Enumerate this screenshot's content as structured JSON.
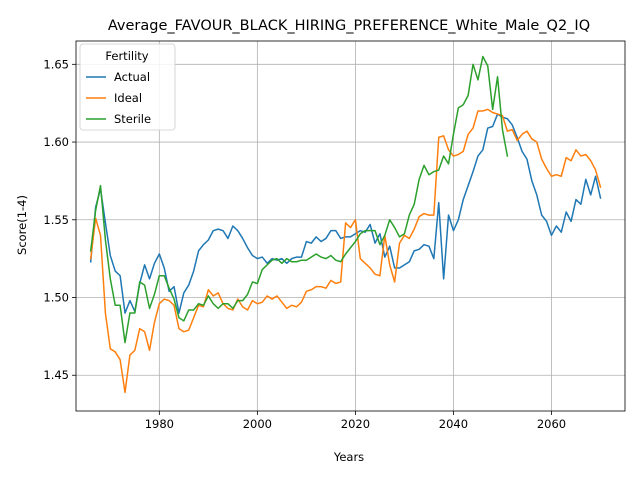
{
  "chart_data": {
    "type": "line",
    "title": "Average_FAVOUR_BLACK_HIRING_PREFERENCE_White_Male_Q2_IQ",
    "xlabel": "Years",
    "ylabel": "Score(1-4)",
    "xlim": [
      1963,
      2075
    ],
    "ylim": [
      1.427,
      1.665
    ],
    "xticks": [
      1980,
      2000,
      2020,
      2040,
      2060
    ],
    "yticks": [
      1.45,
      1.5,
      1.55,
      1.6,
      1.65
    ],
    "xtick_labels": [
      "1980",
      "2000",
      "2020",
      "2040",
      "2060"
    ],
    "ytick_labels": [
      "1.45",
      "1.50",
      "1.55",
      "1.60",
      "1.65"
    ],
    "grid": true,
    "legend": {
      "title": "Fertility",
      "placement": "top-left"
    },
    "series": [
      {
        "name": "Actual",
        "color": "#1f77b4",
        "x": [
          1966,
          1967,
          1968,
          1969,
          1970,
          1971,
          1972,
          1973,
          1974,
          1975,
          1976,
          1977,
          1978,
          1979,
          1980,
          1981,
          1982,
          1983,
          1984,
          1985,
          1986,
          1987,
          1988,
          1989,
          1990,
          1991,
          1992,
          1993,
          1994,
          1995,
          1996,
          1997,
          1998,
          1999,
          2000,
          2001,
          2002,
          2003,
          2004,
          2005,
          2006,
          2007,
          2008,
          2009,
          2010,
          2011,
          2012,
          2013,
          2014,
          2015,
          2016,
          2017,
          2018,
          2019,
          2020,
          2021,
          2022,
          2023,
          2024,
          2025,
          2026,
          2027,
          2028,
          2029,
          2030,
          2031,
          2032,
          2033,
          2034,
          2035,
          2036,
          2037,
          2038,
          2039,
          2040,
          2041,
          2042,
          2043,
          2044,
          2045,
          2046,
          2047,
          2048,
          2049,
          2050,
          2051,
          2052,
          2053,
          2054,
          2055,
          2056,
          2057,
          2058,
          2059,
          2060,
          2061,
          2062,
          2063,
          2064,
          2065,
          2066,
          2067,
          2068,
          2069,
          2070
        ],
        "y": [
          1.523,
          1.558,
          1.57,
          1.548,
          1.527,
          1.517,
          1.514,
          1.49,
          1.498,
          1.491,
          1.509,
          1.521,
          1.512,
          1.522,
          1.528,
          1.519,
          1.504,
          1.507,
          1.49,
          1.503,
          1.508,
          1.517,
          1.53,
          1.534,
          1.537,
          1.543,
          1.544,
          1.543,
          1.538,
          1.546,
          1.543,
          1.538,
          1.532,
          1.527,
          1.525,
          1.526,
          1.522,
          1.525,
          1.524,
          1.525,
          1.522,
          1.525,
          1.526,
          1.526,
          1.536,
          1.535,
          1.539,
          1.536,
          1.538,
          1.543,
          1.543,
          1.538,
          1.539,
          1.539,
          1.541,
          1.543,
          1.542,
          1.547,
          1.535,
          1.541,
          1.526,
          1.533,
          1.519,
          1.519,
          1.521,
          1.523,
          1.53,
          1.531,
          1.534,
          1.533,
          1.525,
          1.561,
          1.512,
          1.553,
          1.543,
          1.55,
          1.563,
          1.572,
          1.581,
          1.591,
          1.595,
          1.609,
          1.61,
          1.618,
          1.616,
          1.615,
          1.611,
          1.603,
          1.594,
          1.589,
          1.575,
          1.566,
          1.553,
          1.549,
          1.54,
          1.546,
          1.542,
          1.555,
          1.549,
          1.563,
          1.56,
          1.576,
          1.566,
          1.578,
          1.564
        ]
      },
      {
        "name": "Ideal",
        "color": "#ff7f0e",
        "x": [
          1966,
          1967,
          1968,
          1969,
          1970,
          1971,
          1972,
          1973,
          1974,
          1975,
          1976,
          1977,
          1978,
          1979,
          1980,
          1981,
          1982,
          1983,
          1984,
          1985,
          1986,
          1987,
          1988,
          1989,
          1990,
          1991,
          1992,
          1993,
          1994,
          1995,
          1996,
          1997,
          1998,
          1999,
          2000,
          2001,
          2002,
          2003,
          2004,
          2005,
          2006,
          2007,
          2008,
          2009,
          2010,
          2011,
          2012,
          2013,
          2014,
          2015,
          2016,
          2017,
          2018,
          2019,
          2020,
          2021,
          2022,
          2023,
          2024,
          2025,
          2026,
          2027,
          2028,
          2029,
          2030,
          2031,
          2032,
          2033,
          2034,
          2035,
          2036,
          2037,
          2038,
          2039,
          2040,
          2041,
          2042,
          2043,
          2044,
          2045,
          2046,
          2047,
          2048,
          2049,
          2050,
          2051,
          2052,
          2053,
          2054,
          2055,
          2056,
          2057,
          2058,
          2059,
          2060,
          2061,
          2062,
          2063,
          2064,
          2065,
          2066,
          2067,
          2068,
          2069,
          2070
        ],
        "y": [
          1.525,
          1.551,
          1.54,
          1.49,
          1.467,
          1.465,
          1.46,
          1.439,
          1.463,
          1.466,
          1.48,
          1.478,
          1.466,
          1.484,
          1.496,
          1.499,
          1.498,
          1.495,
          1.48,
          1.478,
          1.479,
          1.487,
          1.495,
          1.494,
          1.505,
          1.501,
          1.503,
          1.496,
          1.493,
          1.492,
          1.499,
          1.494,
          1.492,
          1.498,
          1.496,
          1.497,
          1.501,
          1.499,
          1.501,
          1.497,
          1.493,
          1.495,
          1.494,
          1.497,
          1.504,
          1.505,
          1.507,
          1.507,
          1.506,
          1.511,
          1.509,
          1.51,
          1.548,
          1.545,
          1.55,
          1.525,
          1.522,
          1.519,
          1.515,
          1.514,
          1.54,
          1.521,
          1.51,
          1.535,
          1.54,
          1.538,
          1.544,
          1.552,
          1.554,
          1.553,
          1.553,
          1.603,
          1.604,
          1.595,
          1.591,
          1.592,
          1.594,
          1.605,
          1.609,
          1.62,
          1.62,
          1.621,
          1.619,
          1.618,
          1.617,
          1.607,
          1.608,
          1.601,
          1.605,
          1.607,
          1.602,
          1.6,
          1.589,
          1.583,
          1.578,
          1.579,
          1.578,
          1.59,
          1.588,
          1.595,
          1.591,
          1.592,
          1.588,
          1.582,
          1.571
        ]
      },
      {
        "name": "Sterile",
        "color": "#2ca02c",
        "x": [
          1966,
          1967,
          1968,
          1969,
          1970,
          1971,
          1972,
          1973,
          1974,
          1975,
          1976,
          1977,
          1978,
          1979,
          1980,
          1981,
          1982,
          1983,
          1984,
          1985,
          1986,
          1987,
          1988,
          1989,
          1990,
          1991,
          1992,
          1993,
          1994,
          1995,
          1996,
          1997,
          1998,
          1999,
          2000,
          2001,
          2002,
          2003,
          2004,
          2005,
          2006,
          2007,
          2008,
          2009,
          2010,
          2011,
          2012,
          2013,
          2014,
          2015,
          2016,
          2017,
          2018,
          2019,
          2020,
          2021,
          2022,
          2023,
          2024,
          2025,
          2026,
          2027,
          2028,
          2029,
          2030,
          2031,
          2032,
          2033,
          2034,
          2035,
          2036,
          2037,
          2038,
          2039,
          2040,
          2041,
          2042,
          2043,
          2044,
          2045,
          2046,
          2047,
          2048,
          2049,
          2050,
          2051
        ],
        "y": [
          1.53,
          1.556,
          1.572,
          1.537,
          1.512,
          1.495,
          1.495,
          1.471,
          1.49,
          1.49,
          1.51,
          1.508,
          1.493,
          1.502,
          1.514,
          1.514,
          1.506,
          1.499,
          1.487,
          1.485,
          1.492,
          1.492,
          1.496,
          1.495,
          1.501,
          1.496,
          1.493,
          1.496,
          1.496,
          1.493,
          1.498,
          1.498,
          1.502,
          1.51,
          1.509,
          1.518,
          1.521,
          1.524,
          1.525,
          1.522,
          1.525,
          1.523,
          1.523,
          1.524,
          1.524,
          1.526,
          1.528,
          1.526,
          1.525,
          1.527,
          1.524,
          1.523,
          1.528,
          1.532,
          1.536,
          1.541,
          1.543,
          1.543,
          1.543,
          1.534,
          1.54,
          1.55,
          1.545,
          1.539,
          1.541,
          1.553,
          1.56,
          1.576,
          1.585,
          1.579,
          1.581,
          1.582,
          1.591,
          1.586,
          1.605,
          1.622,
          1.624,
          1.63,
          1.65,
          1.64,
          1.655,
          1.649,
          1.621,
          1.642,
          1.608,
          1.591
        ]
      }
    ]
  }
}
